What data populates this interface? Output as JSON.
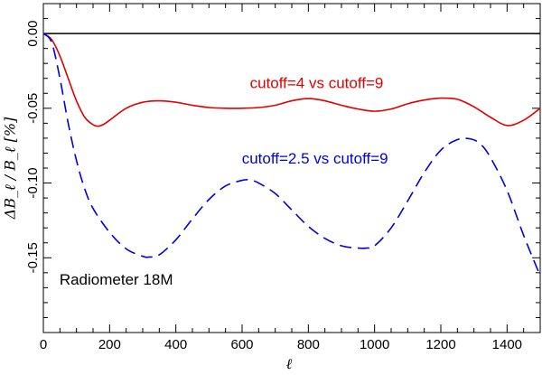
{
  "chart_data": {
    "type": "line",
    "title": "",
    "xlabel": "ℓ",
    "ylabel": "ΔB_ℓ / B_ℓ [%]",
    "xlim": [
      0,
      1500
    ],
    "ylim": [
      -0.2,
      0.02
    ],
    "xticks": [
      0,
      200,
      400,
      600,
      800,
      1000,
      1200,
      1400
    ],
    "xtick_labels": [
      "0",
      "200",
      "400",
      "600",
      "800",
      "1000",
      "1200",
      "1400"
    ],
    "yticks": [
      0.0,
      -0.05,
      -0.1,
      -0.15
    ],
    "ytick_labels": [
      "0.00",
      "-0.05",
      "-0.10",
      "-0.15"
    ],
    "reference_line": {
      "y": 0.0,
      "color": "#000000"
    },
    "series": [
      {
        "name": "cutoff=4 vs cutoff=9",
        "color": "#e00000",
        "style": "solid",
        "x": [
          0,
          25,
          50,
          75,
          100,
          125,
          150,
          165,
          180,
          200,
          250,
          300,
          350,
          400,
          450,
          500,
          550,
          600,
          650,
          700,
          750,
          800,
          850,
          900,
          950,
          1000,
          1050,
          1100,
          1150,
          1200,
          1250,
          1300,
          1350,
          1400,
          1450,
          1500
        ],
        "y": [
          0.0,
          -0.004,
          -0.015,
          -0.03,
          -0.045,
          -0.056,
          -0.061,
          -0.062,
          -0.061,
          -0.058,
          -0.05,
          -0.046,
          -0.045,
          -0.046,
          -0.048,
          -0.0495,
          -0.05,
          -0.05,
          -0.0495,
          -0.048,
          -0.045,
          -0.0435,
          -0.045,
          -0.048,
          -0.0505,
          -0.052,
          -0.0505,
          -0.047,
          -0.0445,
          -0.0432,
          -0.044,
          -0.049,
          -0.056,
          -0.0615,
          -0.058,
          -0.05
        ]
      },
      {
        "name": "cutoff=2.5 vs cutoff=9",
        "color": "#0000e0",
        "style": "dashed",
        "x": [
          0,
          25,
          50,
          75,
          100,
          125,
          150,
          200,
          250,
          300,
          320,
          350,
          400,
          450,
          500,
          550,
          600,
          625,
          650,
          700,
          750,
          800,
          850,
          900,
          950,
          975,
          1000,
          1050,
          1100,
          1150,
          1200,
          1250,
          1290,
          1320,
          1350,
          1400,
          1450,
          1500
        ],
        "y": [
          0.0,
          -0.006,
          -0.03,
          -0.06,
          -0.085,
          -0.104,
          -0.117,
          -0.133,
          -0.144,
          -0.149,
          -0.1495,
          -0.148,
          -0.138,
          -0.124,
          -0.111,
          -0.102,
          -0.0982,
          -0.098,
          -0.1,
          -0.107,
          -0.118,
          -0.129,
          -0.137,
          -0.142,
          -0.1435,
          -0.1435,
          -0.142,
          -0.13,
          -0.112,
          -0.093,
          -0.078,
          -0.071,
          -0.0705,
          -0.074,
          -0.083,
          -0.105,
          -0.135,
          -0.162
        ]
      }
    ],
    "annotations": [
      {
        "text": "cutoff=4 vs cutoff=9",
        "x": 825,
        "y": -0.0365,
        "color": "#e00000"
      },
      {
        "text": "cutoff=2.5 vs cutoff=9",
        "x": 820,
        "y": -0.087,
        "color": "#0000e0"
      },
      {
        "text": "Radiometer 18M",
        "x": 220,
        "y": -0.168,
        "color": "#000000"
      }
    ]
  }
}
